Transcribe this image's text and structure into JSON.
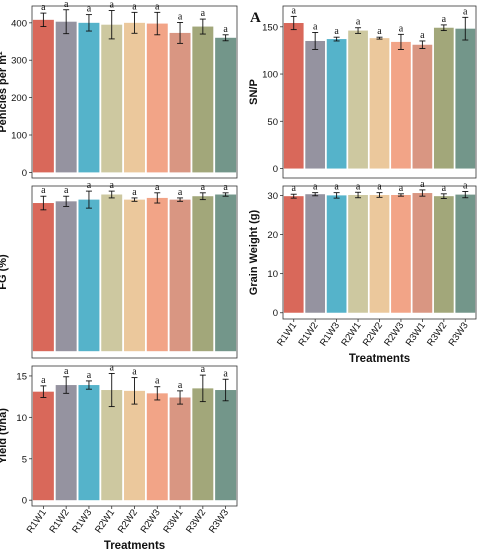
{
  "figure": {
    "panel_letter": "A"
  },
  "colors": [
    "#d9685a",
    "#9593a0",
    "#55b3ca",
    "#cdc8a0",
    "#ebc89c",
    "#f2a487",
    "#d99682",
    "#a2a77a",
    "#73968a"
  ],
  "chart_data": [
    {
      "type": "bar",
      "ylabel": "Penicles per m²",
      "xlabel": "",
      "categories": [
        "R1W1",
        "R1W2",
        "R1W3",
        "R2W1",
        "R2W2",
        "R2W3",
        "R3W1",
        "R3W2",
        "R3W3"
      ],
      "values": [
        408,
        403,
        400,
        395,
        400,
        398,
        373,
        390,
        360
      ],
      "errors": [
        18,
        32,
        22,
        38,
        28,
        30,
        28,
        20,
        8
      ],
      "letters": [
        "a",
        "a",
        "a",
        "a",
        "a",
        "a",
        "a",
        "a",
        "a"
      ],
      "ylim": [
        -15,
        445
      ],
      "yticks": [
        0,
        100,
        200,
        300,
        400
      ],
      "show_xticks": false,
      "grid": false,
      "legend": "none"
    },
    {
      "type": "bar",
      "ylabel": "SN/P",
      "xlabel": "",
      "categories": [
        "R1W1",
        "R1W2",
        "R1W3",
        "R2W1",
        "R2W2",
        "R2W3",
        "R3W1",
        "R3W2",
        "R3W3"
      ],
      "values": [
        154,
        135,
        137,
        146,
        138,
        134,
        131,
        149,
        148
      ],
      "errors": [
        7,
        9,
        2,
        3,
        1,
        8,
        4,
        3,
        12
      ],
      "letters": [
        "a",
        "a",
        "a",
        "a",
        "a",
        "a",
        "a",
        "a",
        "a"
      ],
      "ylim": [
        -10,
        172
      ],
      "yticks": [
        0,
        50,
        100,
        150
      ],
      "show_xticks": false,
      "grid": false,
      "legend": "none"
    },
    {
      "type": "bar",
      "ylabel": "FG (%)",
      "xlabel": "",
      "categories": [
        "R1W1",
        "R1W2",
        "R1W3",
        "R2W1",
        "R2W2",
        "R2W3",
        "R3W1",
        "R3W2",
        "R3W3"
      ],
      "values": [
        87,
        88,
        89,
        92,
        89,
        90,
        89,
        91,
        92
      ],
      "errors": [
        4,
        3,
        5,
        2,
        1,
        3,
        1,
        2,
        1
      ],
      "letters": [
        "a",
        "a",
        "a",
        "a",
        "a",
        "a",
        "a",
        "a",
        "a"
      ],
      "ylim": [
        -4,
        97
      ],
      "yticks": [],
      "show_xticks": false,
      "grid": false,
      "legend": "none"
    },
    {
      "type": "bar",
      "ylabel": "Grain Weight (g)",
      "xlabel": "Treatments",
      "categories": [
        "R1W1",
        "R1W2",
        "R1W3",
        "R2W1",
        "R2W2",
        "R2W3",
        "R3W1",
        "R3W2",
        "R3W3"
      ],
      "values": [
        29.8,
        30.3,
        30.0,
        30.1,
        30.1,
        30.1,
        30.6,
        29.8,
        30.2
      ],
      "errors": [
        0.5,
        0.4,
        0.7,
        0.7,
        0.6,
        0.3,
        0.8,
        0.6,
        0.8
      ],
      "letters": [
        "a",
        "a",
        "a",
        "a",
        "a",
        "a",
        "a",
        "a",
        "a"
      ],
      "ylim": [
        -1.6,
        32.4
      ],
      "yticks": [
        0,
        10,
        20,
        30
      ],
      "show_xticks": true,
      "grid": false,
      "legend": "none"
    },
    {
      "type": "bar",
      "ylabel": "Yield (t/ha)",
      "xlabel": "Treatments",
      "categories": [
        "R1W1",
        "R1W2",
        "R1W3",
        "R2W1",
        "R2W2",
        "R2W3",
        "R3W1",
        "R3W2",
        "R3W3"
      ],
      "values": [
        13.1,
        13.9,
        13.9,
        13.3,
        13.2,
        12.9,
        12.4,
        13.5,
        13.3
      ],
      "errors": [
        0.7,
        1.0,
        0.5,
        2.0,
        1.6,
        0.8,
        0.8,
        1.6,
        1.3
      ],
      "letters": [
        "a",
        "a",
        "a",
        "a",
        "a",
        "a",
        "a",
        "a",
        "a"
      ],
      "ylim": [
        -0.7,
        16.2
      ],
      "yticks": [
        0,
        5,
        10,
        15
      ],
      "show_xticks": true,
      "grid": false,
      "legend": "none"
    }
  ]
}
